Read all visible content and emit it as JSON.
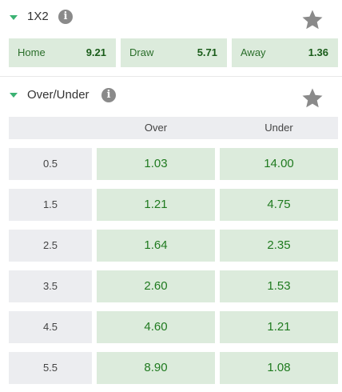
{
  "markets": {
    "one_x_two": {
      "title": "1X2",
      "outcomes": [
        {
          "label": "Home",
          "odds": "9.21"
        },
        {
          "label": "Draw",
          "odds": "5.71"
        },
        {
          "label": "Away",
          "odds": "1.36"
        }
      ]
    },
    "over_under": {
      "title": "Over/Under",
      "columns": {
        "over": "Over",
        "under": "Under"
      },
      "rows": [
        {
          "line": "0.5",
          "over": "1.03",
          "under": "14.00"
        },
        {
          "line": "1.5",
          "over": "1.21",
          "under": "4.75"
        },
        {
          "line": "2.5",
          "over": "1.64",
          "under": "2.35"
        },
        {
          "line": "3.5",
          "over": "2.60",
          "under": "1.53"
        },
        {
          "line": "4.5",
          "over": "4.60",
          "under": "1.21"
        },
        {
          "line": "5.5",
          "over": "8.90",
          "under": "1.08"
        }
      ]
    }
  },
  "icons": {
    "collapse": "chevron-down-icon",
    "info": "info-icon",
    "info_glyph": "i",
    "favorite": "star-icon"
  },
  "colors": {
    "odds_background": "#dcebdc",
    "odds_text": "#1f7a1f",
    "header_background": "#ecedf0",
    "accent_green": "#3bb273",
    "icon_gray": "#8a8a8a"
  }
}
